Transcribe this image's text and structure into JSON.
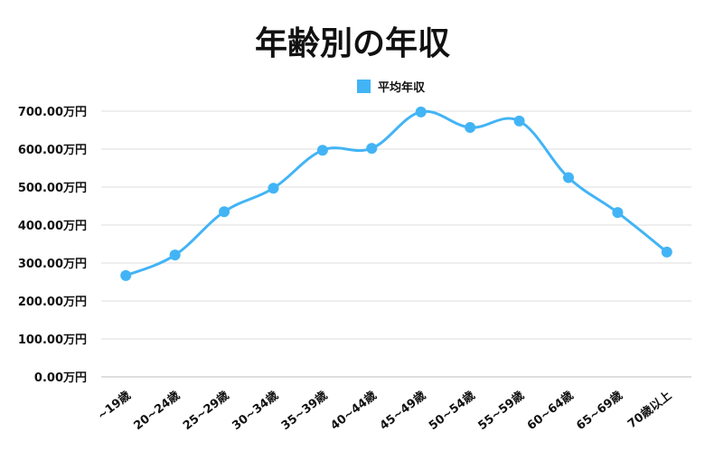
{
  "chart_data": {
    "type": "line",
    "title": "年齢別の年収",
    "xlabel": "",
    "ylabel": "",
    "categories": [
      "~19歳",
      "20~24歳",
      "25~29歳",
      "30~34歳",
      "35~39歳",
      "40~44歳",
      "45~49歳",
      "50~54歳",
      "55~59歳",
      "60~64歳",
      "65~69歳",
      "70歳以上"
    ],
    "series": [
      {
        "name": "平均年収",
        "values": [
          267,
          321,
          435,
          497,
          597,
          602,
          698,
          657,
          674,
          525,
          433,
          329
        ]
      }
    ],
    "ylim": [
      0,
      700
    ],
    "yticks": [
      0,
      100,
      200,
      300,
      400,
      500,
      600,
      700
    ],
    "ytick_labels": [
      "0.00万円",
      "100.00万円",
      "200.00万円",
      "300.00万円",
      "400.00万円",
      "500.00万円",
      "600.00万円",
      "700.00万円"
    ],
    "grid": true,
    "smooth": true,
    "legend_position": "top-center",
    "colors": {
      "series": "#42b4f5",
      "grid": "#dddddd",
      "text": "#111111"
    }
  }
}
